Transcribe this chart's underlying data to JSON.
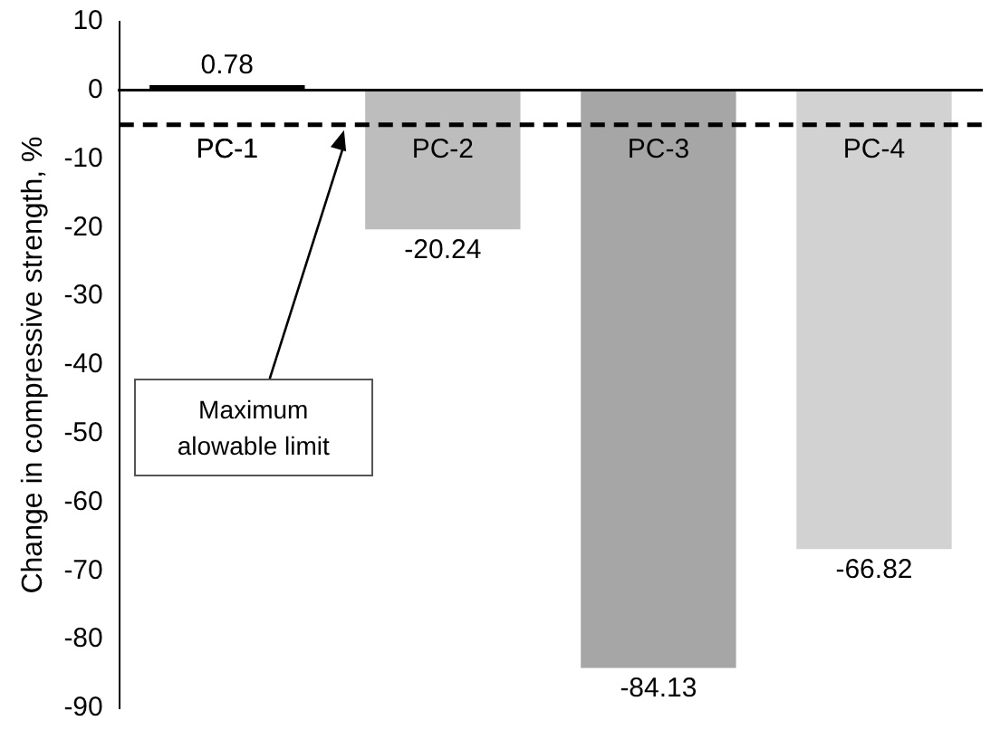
{
  "chart_data": {
    "type": "bar",
    "ylabel": "Change in compressive strength, %",
    "categories": [
      "PC-1",
      "PC-2",
      "PC-3",
      "PC-4"
    ],
    "values": [
      0.78,
      -20.24,
      -84.13,
      -66.82
    ],
    "colors": [
      "#000000",
      "#bdbdbd",
      "#a6a6a6",
      "#d2d2d2"
    ],
    "ylim": [
      -90,
      10
    ],
    "yticks": [
      10,
      0,
      -10,
      -20,
      -30,
      -40,
      -50,
      -60,
      -70,
      -80,
      -90
    ],
    "grid": false,
    "legend": false,
    "data_labels": true,
    "ref_lines": [
      {
        "axis": "y",
        "value": -5,
        "color": "#000000",
        "line_style": "dashed"
      }
    ],
    "annotations": [
      "Maximum alowable limit"
    ]
  }
}
